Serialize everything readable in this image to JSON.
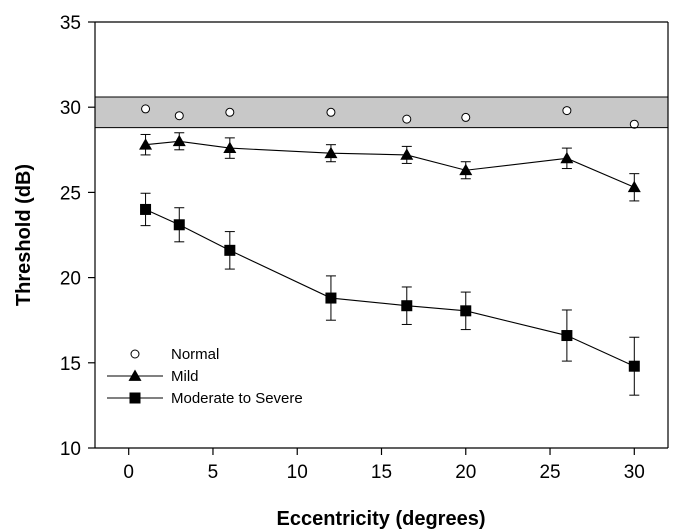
{
  "chart_data": {
    "type": "line",
    "xlabel": "Eccentricity (degrees)",
    "ylabel": "Threshold (dB)",
    "xlim": [
      -2,
      32
    ],
    "ylim": [
      10,
      35
    ],
    "x_ticks": [
      0,
      5,
      10,
      15,
      20,
      25,
      30
    ],
    "x_tick_labels": [
      "0",
      "5",
      "10",
      "15",
      "20",
      "25",
      "30"
    ],
    "y_ticks": [
      10,
      15,
      20,
      25,
      30,
      35
    ],
    "y_tick_labels": [
      "10",
      "15",
      "20",
      "25",
      "30",
      "35"
    ],
    "grid": false,
    "legend_position": "bottom-left",
    "normal_band": [
      28.8,
      30.6
    ],
    "x": [
      1,
      3,
      6,
      12,
      16.5,
      20,
      26,
      30
    ],
    "series": [
      {
        "name": "Normal",
        "marker": "open-circle",
        "line": false,
        "values": [
          29.9,
          29.5,
          29.7,
          29.7,
          29.3,
          29.4,
          29.8,
          29.0
        ],
        "errors": null
      },
      {
        "name": "Mild",
        "marker": "filled-triangle",
        "line": true,
        "values": [
          27.8,
          28.0,
          27.6,
          27.3,
          27.2,
          26.3,
          27.0,
          25.3
        ],
        "errors": [
          0.6,
          0.5,
          0.6,
          0.5,
          0.5,
          0.5,
          0.6,
          0.8
        ]
      },
      {
        "name": "Moderate to Severe",
        "marker": "filled-square",
        "line": true,
        "values": [
          24.0,
          23.1,
          21.6,
          18.8,
          18.35,
          18.05,
          16.6,
          14.8
        ],
        "errors": [
          0.95,
          1.0,
          1.1,
          1.3,
          1.1,
          1.1,
          1.5,
          1.7
        ]
      }
    ]
  },
  "colors": {
    "band_fill": "#c8c8c8",
    "stroke": "#000000",
    "open_marker_fill": "#ffffff"
  }
}
